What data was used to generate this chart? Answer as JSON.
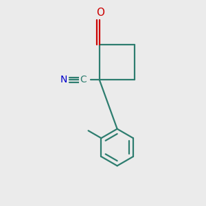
{
  "bg_color": "#EBEBEB",
  "bond_color": "#2D7D6F",
  "O_color": "#CC0000",
  "N_color": "#0000CC",
  "bond_width": 1.6,
  "figsize": [
    3.0,
    3.0
  ],
  "dpi": 100,
  "xlim": [
    -2.2,
    2.4
  ],
  "ylim": [
    -3.5,
    2.2
  ]
}
